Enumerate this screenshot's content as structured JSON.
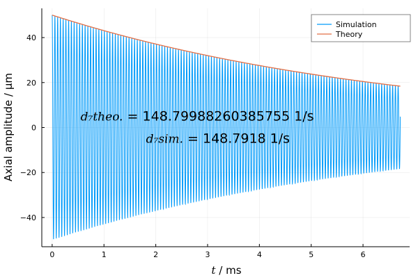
{
  "chart_data": {
    "type": "line",
    "xlabel_var": "t",
    "xlabel_unit": " / ms",
    "ylabel": "Axial amplitude / µm",
    "xlim": [
      -0.2,
      6.9
    ],
    "ylim": [
      -53,
      53
    ],
    "x_ticks": [
      0,
      1,
      2,
      3,
      4,
      5,
      6
    ],
    "y_ticks": [
      -40,
      -20,
      0,
      20,
      40
    ],
    "x_tick_labels": [
      "0",
      "1",
      "2",
      "3",
      "4",
      "5",
      "6"
    ],
    "y_tick_labels": [
      "−40",
      "−20",
      "0",
      "20",
      "40"
    ],
    "grid": true,
    "legend_position": "top-right",
    "series": [
      {
        "name": "Simulation",
        "color": "#009AFA",
        "kind": "damped-oscillation",
        "amplitude0": 50,
        "decay_rate_per_ms": 0.1487918,
        "oscillation_period_ms": 0.053,
        "x_start": 0,
        "x_end": 6.72
      },
      {
        "name": "Theory",
        "color": "#E26F46",
        "kind": "exponential-envelope",
        "amplitude0": 50,
        "decay_rate_per_ms": 0.14879988260385754,
        "x_start": 0,
        "x_end": 6.72
      }
    ],
    "annotations": [
      {
        "symbol": "d₇theo.",
        "text": " = 148.79988260385755 1/s",
        "x": 2.8,
        "y": 5
      },
      {
        "symbol": "d₇sim.",
        "text": " = 148.7918 1/s",
        "x": 3.2,
        "y": -5
      }
    ]
  }
}
